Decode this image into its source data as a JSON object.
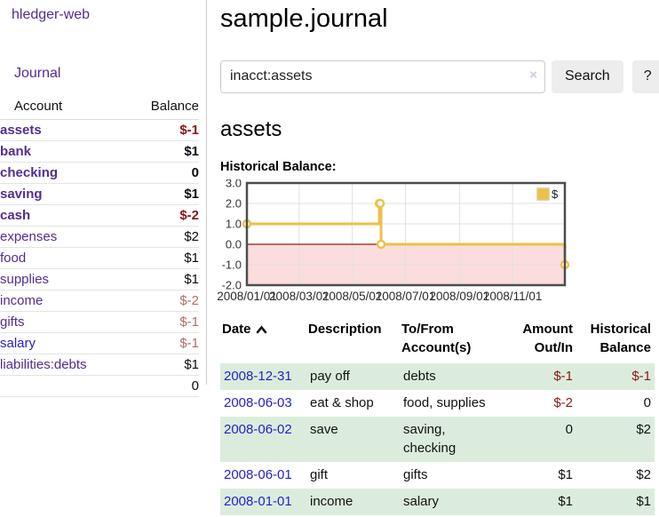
{
  "app": {
    "title": "hledger-web"
  },
  "colors": {
    "accent_purple": "#542c94",
    "link_blue": "#2222cc",
    "negative_strong": "#8b1414",
    "negative_muted": "#b36b6b",
    "row_stripe_green": "#dcecdc",
    "chart_line_gold": "#EAC249",
    "chart_negative_fill": "#fbdddd",
    "chart_zero_line": "#8b1a1a"
  },
  "sidebar": {
    "journal_label": "Journal",
    "accounts_table": {
      "headers": {
        "account": "Account",
        "balance": "Balance"
      },
      "rows": [
        {
          "name": "assets",
          "balance": "$-1",
          "depth": 1,
          "bold": true
        },
        {
          "name": "bank",
          "balance": "$1",
          "depth": 2,
          "bold": true
        },
        {
          "name": "checking",
          "balance": "0",
          "depth": 3,
          "bold": true
        },
        {
          "name": "saving",
          "balance": "$1",
          "depth": 3,
          "bold": true
        },
        {
          "name": "cash",
          "balance": "$-2",
          "depth": 2,
          "bold": true
        },
        {
          "name": "expenses",
          "balance": "$2",
          "depth": 1,
          "bold": false
        },
        {
          "name": "food",
          "balance": "$1",
          "depth": 2,
          "bold": false
        },
        {
          "name": "supplies",
          "balance": "$1",
          "depth": 2,
          "bold": false
        },
        {
          "name": "income",
          "balance": "$-2",
          "depth": 1,
          "bold": false
        },
        {
          "name": "gifts",
          "balance": "$-1",
          "depth": 2,
          "bold": false
        },
        {
          "name": "salary",
          "balance": "$-1",
          "depth": 2,
          "bold": false,
          "blue_link": true
        },
        {
          "name": "liabilities:debts",
          "balance": "$1",
          "depth": 1,
          "bold": false
        }
      ],
      "total": "0"
    }
  },
  "header": {
    "title": "sample.journal"
  },
  "search": {
    "value": "inacct:assets",
    "clear_icon": "×",
    "button_label": "Search",
    "help_label": "?"
  },
  "account_page": {
    "heading": "assets",
    "chart_label": "Historical Balance:"
  },
  "chart_data": {
    "type": "line",
    "step": true,
    "title": "Historical Balance",
    "series": [
      {
        "name": "$",
        "x": [
          "2008-01-01",
          "2008-06-01",
          "2008-06-02",
          "2008-06-03",
          "2008-12-31"
        ],
        "values": [
          1,
          2,
          2,
          0,
          -1
        ]
      }
    ],
    "x_range": [
      "2008-01-01",
      "2008-12-31"
    ],
    "ylim": [
      -2,
      3
    ],
    "yticks": [
      3.0,
      2.0,
      1.0,
      0.0,
      -1.0,
      -2.0
    ],
    "xtick_labels": [
      "2008/01/01",
      "2008/03/01",
      "2008/05/01",
      "2008/07/01",
      "2008/09/01",
      "2008/11/01"
    ],
    "legend": {
      "position": "top-right",
      "entries": [
        {
          "label": "$",
          "color": "#EAC249"
        }
      ]
    },
    "grid": true
  },
  "register_table": {
    "headers": {
      "date": "Date",
      "description": "Description",
      "accounts": "To/From\nAccount(s)",
      "amount": "Amount\nOut/In",
      "balance": "Historical\nBalance"
    },
    "rows": [
      {
        "date": "2008-12-31",
        "description": "pay off",
        "accounts": "debts",
        "amount": "$-1",
        "balance": "$-1"
      },
      {
        "date": "2008-06-03",
        "description": "eat & shop",
        "accounts": "food, supplies",
        "amount": "$-2",
        "balance": "0"
      },
      {
        "date": "2008-06-02",
        "description": "save",
        "accounts": "saving,\nchecking",
        "amount": "0",
        "balance": "$2"
      },
      {
        "date": "2008-06-01",
        "description": "gift",
        "accounts": "gifts",
        "amount": "$1",
        "balance": "$2"
      },
      {
        "date": "2008-01-01",
        "description": "income",
        "accounts": "salary",
        "amount": "$1",
        "balance": "$1"
      }
    ]
  }
}
